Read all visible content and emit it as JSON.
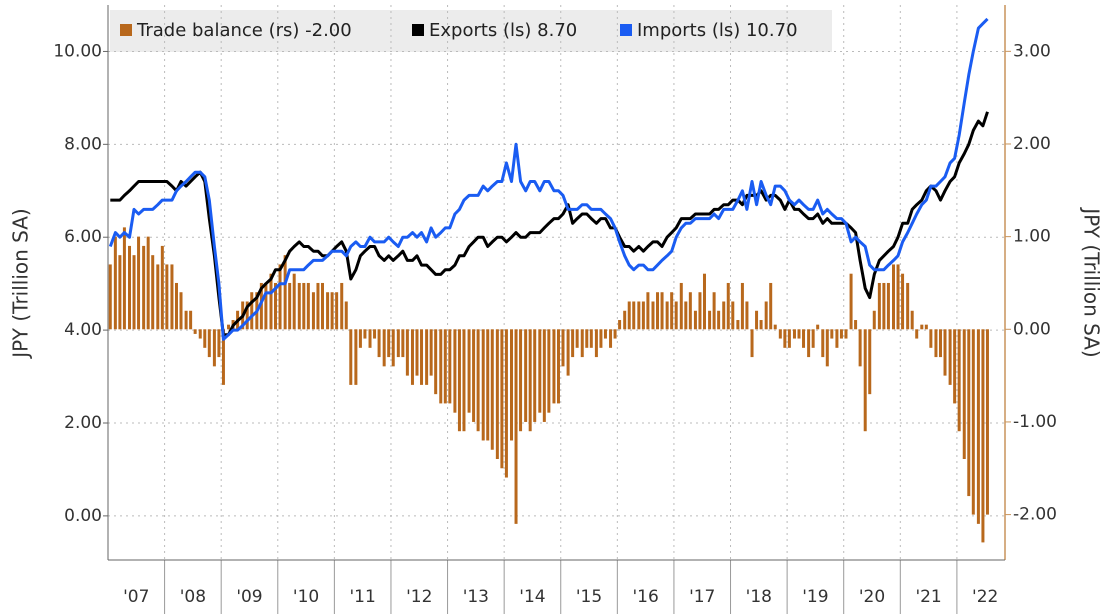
{
  "chart_data": {
    "type": "combo",
    "y_label": "JPY (Trillion SA)",
    "y2_label": "JPY (Trillion SA)",
    "xlim": [
      2007,
      2022.85
    ],
    "xticks": [
      2008,
      2009,
      2010,
      2011,
      2012,
      2013,
      2014,
      2015,
      2016,
      2017,
      2018,
      2019,
      2020,
      2021,
      2022
    ],
    "xtick_labels": [
      {
        "value": 2007.5,
        "label": "'07"
      },
      {
        "value": 2008.5,
        "label": "'08"
      },
      {
        "value": 2009.5,
        "label": "'09"
      },
      {
        "value": 2010.5,
        "label": "'10"
      },
      {
        "value": 2011.5,
        "label": "'11"
      },
      {
        "value": 2012.5,
        "label": "'12"
      },
      {
        "value": 2013.5,
        "label": "'13"
      },
      {
        "value": 2014.5,
        "label": "'14"
      },
      {
        "value": 2015.5,
        "label": "'15"
      },
      {
        "value": 2016.5,
        "label": "'16"
      },
      {
        "value": 2017.5,
        "label": "'17"
      },
      {
        "value": 2018.5,
        "label": "'18"
      },
      {
        "value": 2019.5,
        "label": "'19"
      },
      {
        "value": 2020.5,
        "label": "'20"
      },
      {
        "value": 2021.5,
        "label": "'21"
      },
      {
        "value": 2022.5,
        "label": "'22"
      }
    ],
    "ylim": [
      -0.95,
      11
    ],
    "yticks": [
      {
        "value": 0,
        "label": "0.00"
      },
      {
        "value": 2,
        "label": "2.00"
      },
      {
        "value": 4,
        "label": "4.00"
      },
      {
        "value": 6,
        "label": "6.00"
      },
      {
        "value": 8,
        "label": "8.00"
      },
      {
        "value": 10,
        "label": "10.00"
      }
    ],
    "y2lim": [
      -2.49,
      3.5
    ],
    "y2ticks": [
      {
        "value": -2,
        "label": "-2.00"
      },
      {
        "value": -1,
        "label": "-1.00"
      },
      {
        "value": 0,
        "label": "0.00"
      },
      {
        "value": 1,
        "label": "1.00"
      },
      {
        "value": 2,
        "label": "2.00"
      },
      {
        "value": 3,
        "label": "3.00"
      }
    ],
    "grid": true,
    "x": [
      2007.04,
      2007.13,
      2007.21,
      2007.29,
      2007.38,
      2007.46,
      2007.54,
      2007.63,
      2007.71,
      2007.79,
      2007.88,
      2007.96,
      2008.04,
      2008.13,
      2008.21,
      2008.29,
      2008.38,
      2008.46,
      2008.54,
      2008.63,
      2008.71,
      2008.79,
      2008.88,
      2008.96,
      2009.04,
      2009.13,
      2009.21,
      2009.29,
      2009.38,
      2009.46,
      2009.54,
      2009.63,
      2009.71,
      2009.79,
      2009.88,
      2009.96,
      2010.04,
      2010.13,
      2010.21,
      2010.29,
      2010.38,
      2010.46,
      2010.54,
      2010.63,
      2010.71,
      2010.79,
      2010.88,
      2010.96,
      2011.04,
      2011.13,
      2011.21,
      2011.29,
      2011.38,
      2011.46,
      2011.54,
      2011.63,
      2011.71,
      2011.79,
      2011.88,
      2011.96,
      2012.04,
      2012.13,
      2012.21,
      2012.29,
      2012.38,
      2012.46,
      2012.54,
      2012.63,
      2012.71,
      2012.79,
      2012.88,
      2012.96,
      2013.04,
      2013.13,
      2013.21,
      2013.29,
      2013.38,
      2013.46,
      2013.54,
      2013.63,
      2013.71,
      2013.79,
      2013.88,
      2013.96,
      2014.04,
      2014.13,
      2014.21,
      2014.29,
      2014.38,
      2014.46,
      2014.54,
      2014.63,
      2014.71,
      2014.79,
      2014.88,
      2014.96,
      2015.04,
      2015.13,
      2015.21,
      2015.29,
      2015.38,
      2015.46,
      2015.54,
      2015.63,
      2015.71,
      2015.79,
      2015.88,
      2015.96,
      2016.04,
      2016.13,
      2016.21,
      2016.29,
      2016.38,
      2016.46,
      2016.54,
      2016.63,
      2016.71,
      2016.79,
      2016.88,
      2016.96,
      2017.04,
      2017.13,
      2017.21,
      2017.29,
      2017.38,
      2017.46,
      2017.54,
      2017.63,
      2017.71,
      2017.79,
      2017.88,
      2017.96,
      2018.04,
      2018.13,
      2018.21,
      2018.29,
      2018.38,
      2018.46,
      2018.54,
      2018.63,
      2018.71,
      2018.79,
      2018.88,
      2018.96,
      2019.04,
      2019.13,
      2019.21,
      2019.29,
      2019.38,
      2019.46,
      2019.54,
      2019.63,
      2019.71,
      2019.79,
      2019.88,
      2019.96,
      2020.04,
      2020.13,
      2020.21,
      2020.29,
      2020.38,
      2020.46,
      2020.54,
      2020.63,
      2020.71,
      2020.79,
      2020.88,
      2020.96,
      2021.04,
      2021.13,
      2021.21,
      2021.29,
      2021.38,
      2021.46,
      2021.54,
      2021.63,
      2021.71,
      2021.79,
      2021.88,
      2021.96,
      2022.04,
      2022.13,
      2022.21,
      2022.29,
      2022.38,
      2022.46,
      2022.54
    ],
    "series": [
      {
        "name": "Trade balance (rs) -2.00",
        "type": "bar",
        "axis": "y2",
        "color": "#b8681c",
        "values": [
          0.7,
          1.0,
          0.8,
          1.1,
          0.9,
          0.8,
          1.0,
          0.9,
          1.0,
          0.8,
          0.7,
          0.9,
          0.7,
          0.7,
          0.5,
          0.4,
          0.2,
          0.2,
          -0.05,
          -0.1,
          -0.2,
          -0.3,
          -0.4,
          -0.3,
          -0.6,
          0.05,
          0.1,
          0.2,
          0.3,
          0.3,
          0.4,
          0.4,
          0.5,
          0.5,
          0.6,
          0.5,
          0.7,
          0.8,
          0.5,
          0.6,
          0.5,
          0.5,
          0.5,
          0.4,
          0.5,
          0.5,
          0.4,
          0.4,
          0.4,
          0.5,
          0.3,
          -0.6,
          -0.6,
          -0.2,
          -0.1,
          -0.2,
          -0.1,
          -0.3,
          -0.4,
          -0.3,
          -0.4,
          -0.3,
          -0.3,
          -0.5,
          -0.6,
          -0.5,
          -0.6,
          -0.6,
          -0.5,
          -0.7,
          -0.8,
          -0.8,
          -0.8,
          -0.9,
          -1.1,
          -1.1,
          -0.9,
          -1.0,
          -1.1,
          -1.2,
          -1.2,
          -1.3,
          -1.4,
          -1.5,
          -1.6,
          -1.2,
          -2.1,
          -1.1,
          -1.0,
          -1.1,
          -1.0,
          -0.9,
          -1.0,
          -0.9,
          -0.8,
          -0.8,
          -0.4,
          -0.5,
          -0.3,
          -0.2,
          -0.3,
          -0.2,
          -0.2,
          -0.3,
          -0.2,
          -0.1,
          -0.2,
          -0.1,
          0.1,
          0.2,
          0.3,
          0.3,
          0.3,
          0.3,
          0.4,
          0.3,
          0.4,
          0.4,
          0.3,
          0.4,
          0.3,
          0.5,
          0.3,
          0.4,
          0.2,
          0.4,
          0.6,
          0.2,
          0.4,
          0.2,
          0.3,
          0.5,
          0.3,
          0.1,
          0.5,
          0.3,
          -0.3,
          0.2,
          0.1,
          0.3,
          0.5,
          0.05,
          -0.1,
          -0.2,
          -0.2,
          -0.1,
          -0.1,
          -0.2,
          -0.3,
          -0.2,
          0.05,
          -0.3,
          -0.4,
          -0.1,
          -0.2,
          -0.1,
          -0.1,
          0.6,
          0.1,
          -0.4,
          -1.1,
          -0.7,
          0.2,
          0.5,
          0.5,
          0.5,
          0.7,
          0.7,
          0.6,
          0.5,
          0.2,
          -0.1,
          0.05,
          0.05,
          -0.2,
          -0.3,
          -0.3,
          -0.5,
          -0.6,
          -0.8,
          -1.1,
          -1.4,
          -1.8,
          -2.0,
          -2.1,
          -2.3,
          -2.0
        ]
      },
      {
        "name": "Exports (ls) 8.70",
        "type": "line",
        "color": "#000000",
        "values": [
          6.8,
          6.8,
          6.8,
          6.9,
          7.0,
          7.1,
          7.2,
          7.2,
          7.2,
          7.2,
          7.2,
          7.2,
          7.2,
          7.1,
          7.0,
          7.2,
          7.1,
          7.2,
          7.3,
          7.4,
          7.2,
          6.4,
          5.6,
          4.7,
          3.9,
          3.9,
          4.1,
          4.2,
          4.3,
          4.5,
          4.6,
          4.7,
          4.9,
          5.0,
          5.1,
          5.3,
          5.3,
          5.5,
          5.7,
          5.8,
          5.9,
          5.8,
          5.8,
          5.7,
          5.7,
          5.6,
          5.6,
          5.7,
          5.8,
          5.9,
          5.7,
          5.1,
          5.3,
          5.6,
          5.7,
          5.8,
          5.8,
          5.6,
          5.5,
          5.6,
          5.5,
          5.6,
          5.7,
          5.5,
          5.5,
          5.6,
          5.4,
          5.4,
          5.3,
          5.2,
          5.2,
          5.3,
          5.3,
          5.4,
          5.6,
          5.6,
          5.8,
          5.9,
          6.0,
          6.0,
          5.8,
          5.9,
          6.0,
          6.0,
          5.9,
          6.0,
          6.1,
          6.0,
          6.0,
          6.1,
          6.1,
          6.1,
          6.2,
          6.3,
          6.4,
          6.4,
          6.5,
          6.7,
          6.3,
          6.4,
          6.5,
          6.5,
          6.4,
          6.3,
          6.4,
          6.4,
          6.2,
          6.2,
          6.0,
          5.8,
          5.8,
          5.7,
          5.8,
          5.7,
          5.8,
          5.9,
          5.9,
          5.8,
          6.0,
          6.1,
          6.2,
          6.4,
          6.4,
          6.4,
          6.5,
          6.5,
          6.5,
          6.5,
          6.6,
          6.6,
          6.7,
          6.7,
          6.8,
          6.8,
          6.7,
          6.9,
          6.9,
          6.9,
          7.0,
          6.8,
          6.9,
          6.9,
          6.8,
          6.6,
          6.8,
          6.6,
          6.6,
          6.5,
          6.4,
          6.4,
          6.5,
          6.3,
          6.4,
          6.3,
          6.3,
          6.3,
          6.3,
          6.2,
          6.1,
          5.5,
          4.9,
          4.7,
          5.2,
          5.5,
          5.6,
          5.7,
          5.8,
          6.0,
          6.3,
          6.3,
          6.6,
          6.7,
          6.8,
          7.0,
          7.1,
          7.0,
          6.8,
          7.0,
          7.2,
          7.3,
          7.6,
          7.8,
          8.0,
          8.3,
          8.5,
          8.4,
          8.7
        ]
      },
      {
        "name": "Imports (ls) 10.70",
        "type": "line",
        "color": "#1a5cf2",
        "values": [
          5.8,
          6.1,
          6.0,
          6.1,
          6.0,
          6.6,
          6.5,
          6.6,
          6.6,
          6.6,
          6.7,
          6.8,
          6.8,
          6.8,
          7.0,
          7.1,
          7.2,
          7.3,
          7.4,
          7.4,
          7.3,
          6.8,
          5.8,
          5.0,
          3.8,
          3.9,
          4.0,
          4.0,
          4.1,
          4.2,
          4.3,
          4.4,
          4.6,
          4.8,
          4.8,
          4.9,
          5.0,
          5.0,
          5.3,
          5.3,
          5.3,
          5.3,
          5.4,
          5.5,
          5.5,
          5.5,
          5.6,
          5.7,
          5.7,
          5.7,
          5.6,
          5.8,
          5.9,
          5.8,
          5.8,
          6.0,
          5.9,
          5.9,
          5.9,
          6.0,
          5.9,
          5.8,
          6.0,
          6.0,
          6.1,
          6.0,
          6.1,
          5.9,
          6.2,
          6.0,
          6.1,
          6.2,
          6.2,
          6.5,
          6.6,
          6.8,
          6.9,
          6.9,
          6.9,
          7.1,
          7.0,
          7.1,
          7.2,
          7.2,
          7.6,
          7.2,
          8.0,
          7.2,
          7.0,
          7.2,
          7.2,
          7.0,
          7.2,
          7.2,
          7.0,
          7.0,
          6.9,
          6.6,
          6.6,
          6.6,
          6.7,
          6.7,
          6.6,
          6.6,
          6.6,
          6.5,
          6.4,
          6.2,
          5.9,
          5.6,
          5.4,
          5.3,
          5.4,
          5.4,
          5.3,
          5.3,
          5.4,
          5.5,
          5.6,
          5.7,
          6.0,
          6.2,
          6.3,
          6.3,
          6.4,
          6.4,
          6.4,
          6.4,
          6.5,
          6.4,
          6.6,
          6.6,
          6.6,
          6.8,
          7.0,
          6.6,
          7.2,
          6.7,
          7.2,
          6.9,
          6.7,
          7.1,
          7.1,
          7.0,
          6.8,
          6.7,
          6.8,
          6.7,
          6.6,
          6.6,
          6.8,
          6.5,
          6.6,
          6.5,
          6.4,
          6.4,
          6.3,
          5.9,
          6.0,
          5.9,
          5.8,
          5.4,
          5.3,
          5.3,
          5.3,
          5.4,
          5.5,
          5.6,
          5.9,
          6.1,
          6.3,
          6.5,
          6.7,
          6.8,
          7.1,
          7.1,
          7.2,
          7.3,
          7.6,
          7.7,
          8.2,
          8.9,
          9.5,
          10.0,
          10.5,
          10.6,
          10.7
        ]
      }
    ]
  }
}
